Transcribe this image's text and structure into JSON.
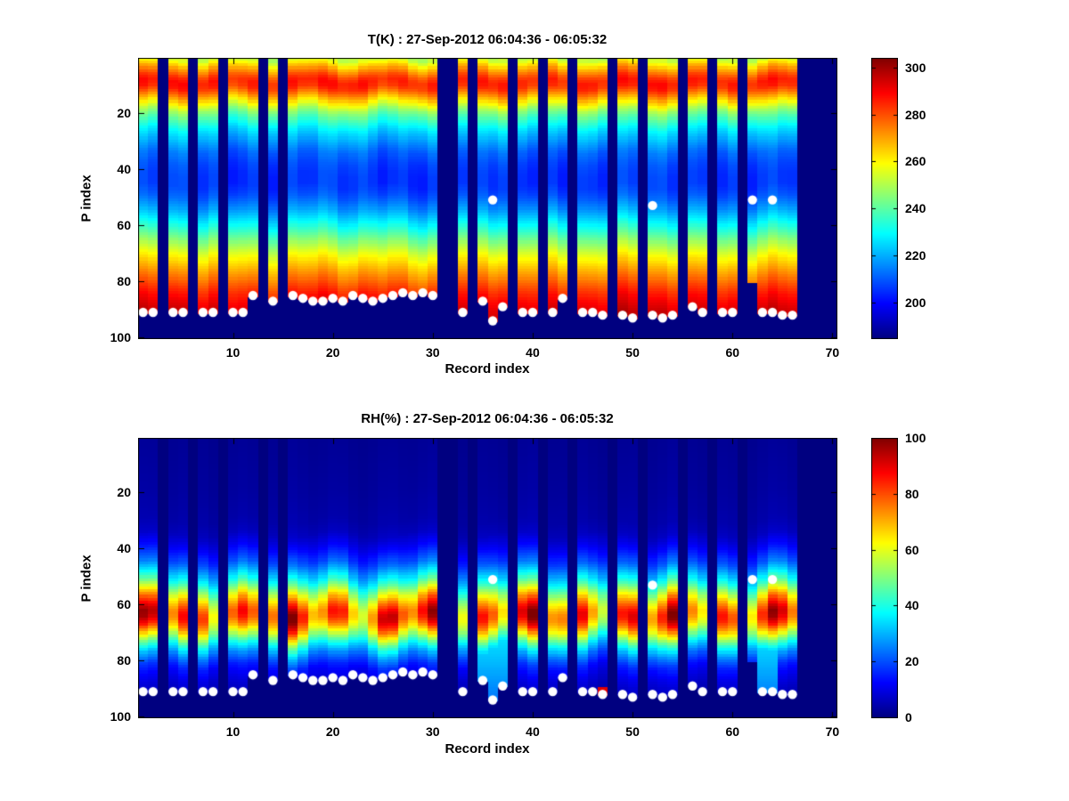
{
  "figure": {
    "background": "#ffffff",
    "marker_color": "#ffffff",
    "axis_color": "#000000"
  },
  "chart_data": [
    {
      "type": "heatmap",
      "title": "T(K) : 27-Sep-2012 06:04:36 - 06:05:32",
      "xlabel": "Record index",
      "ylabel": "P index",
      "xlim": [
        0.5,
        70.5
      ],
      "ylim": [
        0.5,
        100.5
      ],
      "y_axis_reversed": true,
      "xticks": [
        10,
        20,
        30,
        40,
        50,
        60,
        70
      ],
      "yticks": [
        20,
        40,
        60,
        80,
        100
      ],
      "colormap": "jet",
      "vmin": 185,
      "vmax": 304,
      "colorbar_ticks": [
        200,
        220,
        240,
        260,
        280,
        300
      ],
      "background_value": 185,
      "profile_p": [
        1,
        4,
        7,
        9,
        11,
        13,
        16,
        19,
        22,
        26,
        30,
        34,
        38,
        42,
        46,
        50,
        54,
        58,
        62,
        66,
        70,
        74,
        78,
        82,
        86,
        90,
        93,
        96,
        100
      ],
      "profile_value": [
        252,
        268,
        281,
        286,
        284,
        276,
        262,
        248,
        238,
        227,
        219,
        212,
        208,
        206,
        206,
        210,
        217,
        226,
        236,
        246,
        256,
        265,
        273,
        281,
        288,
        293,
        296,
        297,
        297
      ]
    },
    {
      "type": "heatmap",
      "title": "RH(%) : 27-Sep-2012 06:04:36 - 06:05:32",
      "xlabel": "Record index",
      "ylabel": "P index",
      "xlim": [
        0.5,
        70.5
      ],
      "ylim": [
        0.5,
        100.5
      ],
      "y_axis_reversed": true,
      "xticks": [
        10,
        20,
        30,
        40,
        50,
        60,
        70
      ],
      "yticks": [
        20,
        40,
        60,
        80,
        100
      ],
      "colormap": "jet",
      "vmin": 0,
      "vmax": 100,
      "colorbar_ticks": [
        0,
        20,
        40,
        60,
        80,
        100
      ],
      "background_value": 0,
      "profile_p": [
        1,
        20,
        30,
        35,
        40,
        45,
        48,
        52,
        55,
        58,
        61,
        63,
        65,
        68,
        71,
        74,
        78,
        82,
        86,
        90,
        93,
        100
      ],
      "profile_value": [
        2,
        3,
        4,
        6,
        12,
        20,
        28,
        40,
        52,
        65,
        75,
        80,
        79,
        70,
        55,
        40,
        25,
        15,
        10,
        7,
        5,
        4
      ],
      "moist_records": [
        35,
        36,
        37,
        63,
        64
      ],
      "hot_bottom_records": [
        47
      ]
    }
  ],
  "records": {
    "first": 1,
    "last": 66,
    "display_max": 70,
    "missing": [
      3,
      6,
      9,
      13,
      15,
      31,
      32,
      34,
      38,
      41,
      44,
      48,
      51,
      55,
      58,
      61
    ],
    "surface_p": [
      92,
      92,
      null,
      92,
      92,
      null,
      92,
      92,
      null,
      92,
      92,
      86,
      null,
      88,
      null,
      86,
      87,
      88,
      88,
      87,
      88,
      86,
      87,
      88,
      87,
      86,
      85,
      86,
      85,
      86,
      null,
      null,
      92,
      null,
      88,
      95,
      90,
      null,
      92,
      92,
      null,
      92,
      87,
      null,
      92,
      92,
      93,
      null,
      93,
      94,
      null,
      93,
      94,
      93,
      null,
      90,
      92,
      null,
      92,
      92,
      null,
      81,
      92,
      92,
      93,
      93
    ],
    "anomalous_markers": [
      {
        "record": 36,
        "p": 51
      },
      {
        "record": 52,
        "p": 53
      },
      {
        "record": 62,
        "p": 51
      },
      {
        "record": 64,
        "p": 51
      }
    ]
  }
}
